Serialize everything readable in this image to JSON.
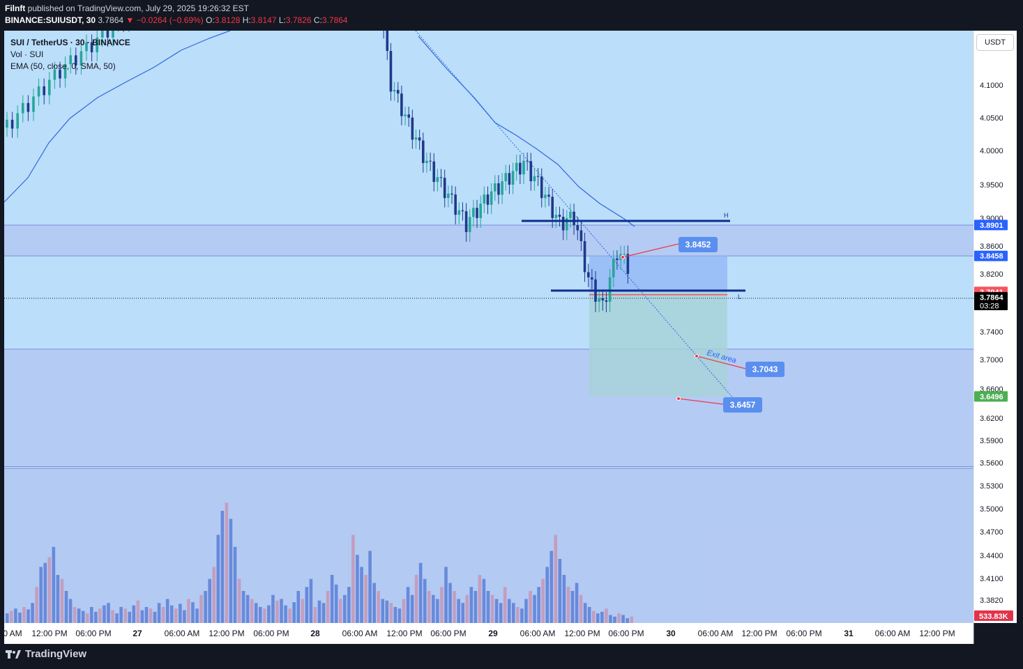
{
  "header": {
    "author": "Filnft",
    "published_text": " published on TradingView.com, July 29, 2025 19:26:32 EST",
    "symbol": "BINANCE:SUIUSDT, 30",
    "last": "3.7864",
    "change": "−0.0264 (−0.69%)",
    "open_label": "O:",
    "open": "3.8128",
    "high_label": "H:",
    "high": "3.8147",
    "low_label": "L:",
    "low": "3.7826",
    "close_label": "C:",
    "close": "3.7864"
  },
  "legend": {
    "title": "SUI / TetherUS · 30 · BINANCE",
    "volume": "Vol · SUI",
    "ema": "EMA (50, close, 0, SMA, 50)"
  },
  "price_axis": {
    "unit": "USDT",
    "ticks": [
      "4.1000",
      "4.0500",
      "4.0000",
      "3.9500",
      "3.9000",
      "3.8600",
      "3.8200",
      "3.7800",
      "3.7400",
      "3.7000",
      "3.6600",
      "3.6200",
      "3.5900",
      "3.5600",
      "3.5300",
      "3.5000",
      "3.4700",
      "3.4400",
      "3.4100",
      "3.3820"
    ],
    "tags": [
      {
        "text": "3.8901",
        "color": "#2962ff",
        "price": 3.8901
      },
      {
        "text": "3.8458",
        "color": "#2962ff",
        "price": 3.8458
      },
      {
        "text": "3.7941",
        "color": "#f7525f",
        "price": 3.7941
      },
      {
        "text": "3.7864",
        "sub": "03:28",
        "color": "#000000",
        "price": 3.7864
      },
      {
        "text": "3.6496",
        "color": "#4caf50",
        "price": 3.6496
      }
    ],
    "volume_tag": "533.83K"
  },
  "time_axis": [
    "0 AM",
    "12:00 PM",
    "06:00 PM",
    "27",
    "06:00 AM",
    "12:00 PM",
    "06:00 PM",
    "28",
    "06:00 AM",
    "12:00 PM",
    "06:00 PM",
    "29",
    "06:00 AM",
    "12:00 PM",
    "06:00 PM",
    "30",
    "06:00 AM",
    "12:00 PM",
    "06:00 PM",
    "31",
    "06:00 AM",
    "12:00 PM"
  ],
  "drawings": {
    "level_h_label": "H",
    "level_l_label": "L",
    "exit_text": "Exit area",
    "callouts": [
      "3.8452",
      "3.7043",
      "3.6457"
    ]
  },
  "colors": {
    "background": "#bbdefb",
    "zone": "#b3c8f2",
    "up": "#26a69a",
    "down": "#1e3a8a",
    "ema": "#3366dd",
    "level": "#0d2c8c",
    "vol_up": "#5b7fd6",
    "vol_down": "#c796b4"
  },
  "chart_data": {
    "type": "candlestick",
    "symbol": "SUI / TetherUS",
    "interval": "30",
    "exchange": "BINANCE",
    "y_range": [
      3.37,
      4.2
    ],
    "indicators": [
      "Vol · SUI",
      "EMA (50, close, 0, SMA, 50)"
    ],
    "levels": [
      3.8959,
      3.7941
    ],
    "position": {
      "entry": 3.7941,
      "stop": 3.8458,
      "target": 3.6496
    },
    "zones": [
      [
        3.8458,
        3.89
      ],
      [
        3.555,
        3.715
      ]
    ],
    "callouts": [
      3.8452,
      3.7043,
      3.6457
    ],
    "last_price": 3.7864,
    "last_volume": "533.83K",
    "grid": false
  }
}
